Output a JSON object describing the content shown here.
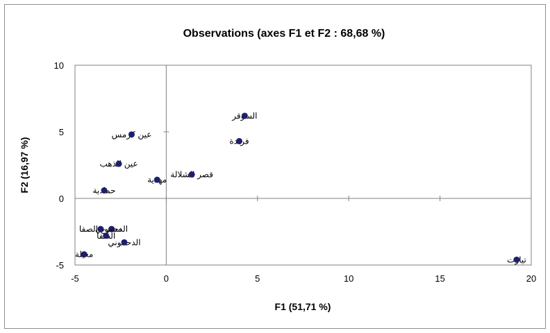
{
  "chart_data": {
    "type": "scatter",
    "title": "Observations (axes F1 et F2 : 68,68 %)",
    "xlabel": "F1 (51,71 %)",
    "ylabel": "F2 (16,97 %)",
    "xlim": [
      -5,
      20
    ],
    "ylim": [
      -5,
      10
    ],
    "xticks": [
      "-5",
      "0",
      "5",
      "10",
      "15",
      "20"
    ],
    "yticks": [
      "-5",
      "0",
      "5",
      "10"
    ],
    "grid": false,
    "point_color": "#1f1f6e",
    "axis_color": "#808080",
    "points": [
      {
        "label": "السوقر",
        "x": 4.3,
        "y": 6.2
      },
      {
        "label": "فرندة",
        "x": 4.0,
        "y": 4.3
      },
      {
        "label": "عين كرمس",
        "x": -1.9,
        "y": 4.8
      },
      {
        "label": "عين الذهب",
        "x": -2.6,
        "y": 2.6
      },
      {
        "label": "قصر الشلالة",
        "x": 1.4,
        "y": 1.8
      },
      {
        "label": "مهدية",
        "x": -0.5,
        "y": 1.4
      },
      {
        "label": "حمادية",
        "x": -3.4,
        "y": 0.6
      },
      {
        "label": "الدحموني",
        "x": -3.0,
        "y": -2.3
      },
      {
        "label": "مشرع الصفا",
        "x": -3.6,
        "y": -2.3
      },
      {
        "label": "الضفا",
        "x": -3.3,
        "y": -2.8
      },
      {
        "label": "الدحموني",
        "x": -2.3,
        "y": -3.3
      },
      {
        "label": "مغيلة",
        "x": -4.5,
        "y": -4.2
      },
      {
        "label": "تيارت",
        "x": 19.2,
        "y": -4.6
      }
    ]
  }
}
